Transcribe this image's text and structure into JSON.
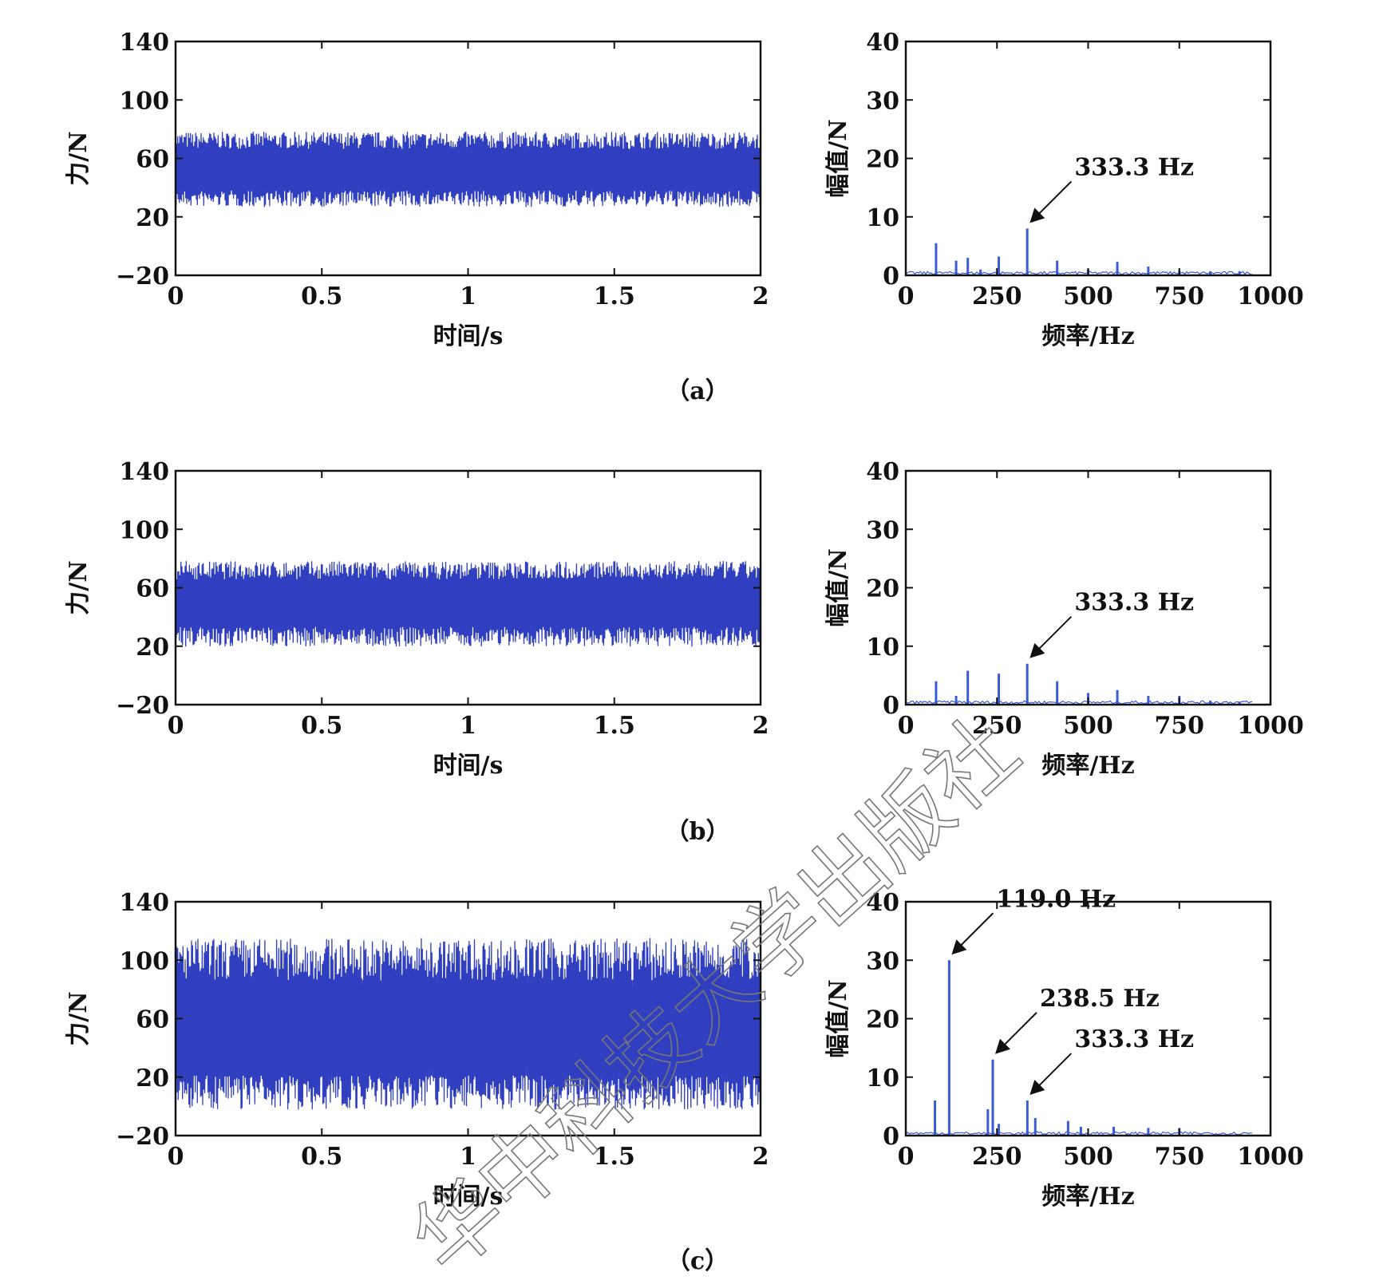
{
  "chart_data": [
    {
      "panel": "a",
      "type": "line",
      "caption": "（a）",
      "xlabel": "时间/s",
      "ylabel": "力/N",
      "xlim": [
        0,
        2
      ],
      "ylim": [
        -20,
        140
      ],
      "xticks": [
        "0",
        "0.5",
        "1",
        "1.5",
        "2"
      ],
      "yticks": [
        "−20",
        "20",
        "60",
        "100",
        "140"
      ],
      "series": [
        {
          "mean": 52,
          "low": 27,
          "high": 78,
          "color": "#2f3fc0"
        }
      ]
    },
    {
      "panel": "a",
      "type": "bar",
      "xlabel": "频率/Hz",
      "ylabel": "幅值/N",
      "xlim": [
        0,
        1000
      ],
      "ylim": [
        0,
        40
      ],
      "xticks": [
        "0",
        "250",
        "500",
        "750",
        "1000"
      ],
      "yticks": [
        "0",
        "10",
        "20",
        "30",
        "40"
      ],
      "x": [
        83,
        138,
        170,
        205,
        255,
        333,
        415,
        500,
        580,
        665,
        750,
        835,
        915
      ],
      "values": [
        5.5,
        2.5,
        3,
        1,
        3.2,
        8,
        2.5,
        1,
        2.3,
        1.5,
        0.8,
        0.7,
        0.7
      ],
      "annotations": [
        {
          "text": "333.3 Hz",
          "x": 333.3,
          "y": 8
        }
      ]
    },
    {
      "panel": "b",
      "type": "line",
      "caption": "（b）",
      "xlabel": "时间/s",
      "ylabel": "力/N",
      "xlim": [
        0,
        2
      ],
      "ylim": [
        -20,
        140
      ],
      "xticks": [
        "0",
        "0.5",
        "1",
        "1.5",
        "2"
      ],
      "yticks": [
        "−20",
        "20",
        "60",
        "100",
        "140"
      ],
      "series": [
        {
          "mean": 50,
          "low": 20,
          "high": 78,
          "color": "#2f3fc0"
        }
      ]
    },
    {
      "panel": "b",
      "type": "bar",
      "xlabel": "频率/Hz",
      "ylabel": "幅值/N",
      "xlim": [
        0,
        1000
      ],
      "ylim": [
        0,
        40
      ],
      "xticks": [
        "0",
        "250",
        "500",
        "750",
        "1000"
      ],
      "yticks": [
        "0",
        "10",
        "20",
        "30",
        "40"
      ],
      "x": [
        83,
        138,
        170,
        255,
        333,
        415,
        500,
        580,
        665,
        750,
        835,
        915
      ],
      "values": [
        4,
        1.5,
        5.8,
        5.3,
        7,
        4,
        2,
        2.5,
        1.5,
        1.5,
        0.7,
        0.5
      ],
      "annotations": [
        {
          "text": "333.3 Hz",
          "x": 333.3,
          "y": 7
        }
      ]
    },
    {
      "panel": "c",
      "type": "line",
      "caption": "（c）",
      "xlabel": "时间/s",
      "ylabel": "力/N",
      "xlim": [
        0,
        2
      ],
      "ylim": [
        -20,
        140
      ],
      "xticks": [
        "0",
        "0.5",
        "1",
        "1.5",
        "2"
      ],
      "yticks": [
        "−20",
        "20",
        "60",
        "100",
        "140"
      ],
      "series": [
        {
          "mean": 50,
          "low": -2,
          "high": 115,
          "color": "#2f3fc0"
        }
      ]
    },
    {
      "panel": "c",
      "type": "bar",
      "xlabel": "频率/Hz",
      "ylabel": "幅值/N",
      "xlim": [
        0,
        1000
      ],
      "ylim": [
        0,
        40
      ],
      "xticks": [
        "0",
        "250",
        "500",
        "750",
        "1000"
      ],
      "yticks": [
        "0",
        "10",
        "20",
        "30",
        "40"
      ],
      "x": [
        80,
        119,
        225,
        238.5,
        255,
        333.3,
        355,
        445,
        480,
        570,
        665,
        750
      ],
      "values": [
        6,
        30,
        4.5,
        13,
        2,
        6,
        3,
        2.5,
        1.5,
        1.5,
        1.3,
        1.3
      ],
      "annotations": [
        {
          "text": "119.0 Hz",
          "x": 119,
          "y": 30
        },
        {
          "text": "238.5 Hz",
          "x": 238.5,
          "y": 13
        },
        {
          "text": "333.3 Hz",
          "x": 333.3,
          "y": 6
        }
      ]
    }
  ],
  "watermark": "华中科技大学出版社"
}
